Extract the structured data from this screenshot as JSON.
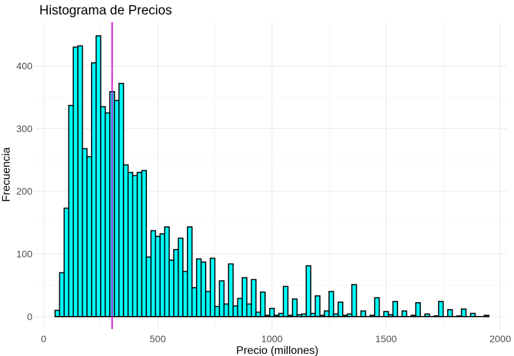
{
  "chart_data": {
    "type": "bar",
    "title": "Histograma de Precios",
    "xlabel": "Precio (millones)",
    "ylabel": "Frecuencia",
    "xlim": [
      -40,
      2030
    ],
    "ylim": [
      -20,
      470
    ],
    "x_ticks": [
      0,
      500,
      1000,
      1500,
      2000
    ],
    "x_tick_labels": [
      "0",
      "500",
      "1000",
      "1500",
      "2000"
    ],
    "y_ticks": [
      0,
      100,
      200,
      300,
      400
    ],
    "y_tick_labels": [
      "0",
      "100",
      "200",
      "300",
      "400"
    ],
    "grid": true,
    "bin_start": 50,
    "bin_width": 20,
    "bar_fill": "#00ffff",
    "bar_outline": "#000000",
    "values": [
      10,
      70,
      173,
      337,
      430,
      432,
      268,
      255,
      405,
      448,
      335,
      325,
      359,
      345,
      372,
      242,
      230,
      225,
      230,
      233,
      95,
      137,
      128,
      132,
      143,
      90,
      107,
      125,
      72,
      143,
      46,
      92,
      87,
      40,
      93,
      16,
      57,
      20,
      84,
      17,
      29,
      62,
      20,
      59,
      7,
      39,
      2,
      13,
      2,
      5,
      48,
      2,
      28,
      3,
      4,
      81,
      5,
      33,
      2,
      9,
      40,
      4,
      23,
      2,
      4,
      51,
      0,
      9,
      0,
      2,
      30,
      0,
      8,
      3,
      24,
      0,
      9,
      0,
      2,
      22,
      0,
      4,
      0,
      1,
      24,
      0,
      11,
      0,
      1,
      12,
      0,
      5,
      0,
      0,
      2
    ],
    "vline": {
      "x": 300,
      "color": "#cc00cc"
    }
  }
}
